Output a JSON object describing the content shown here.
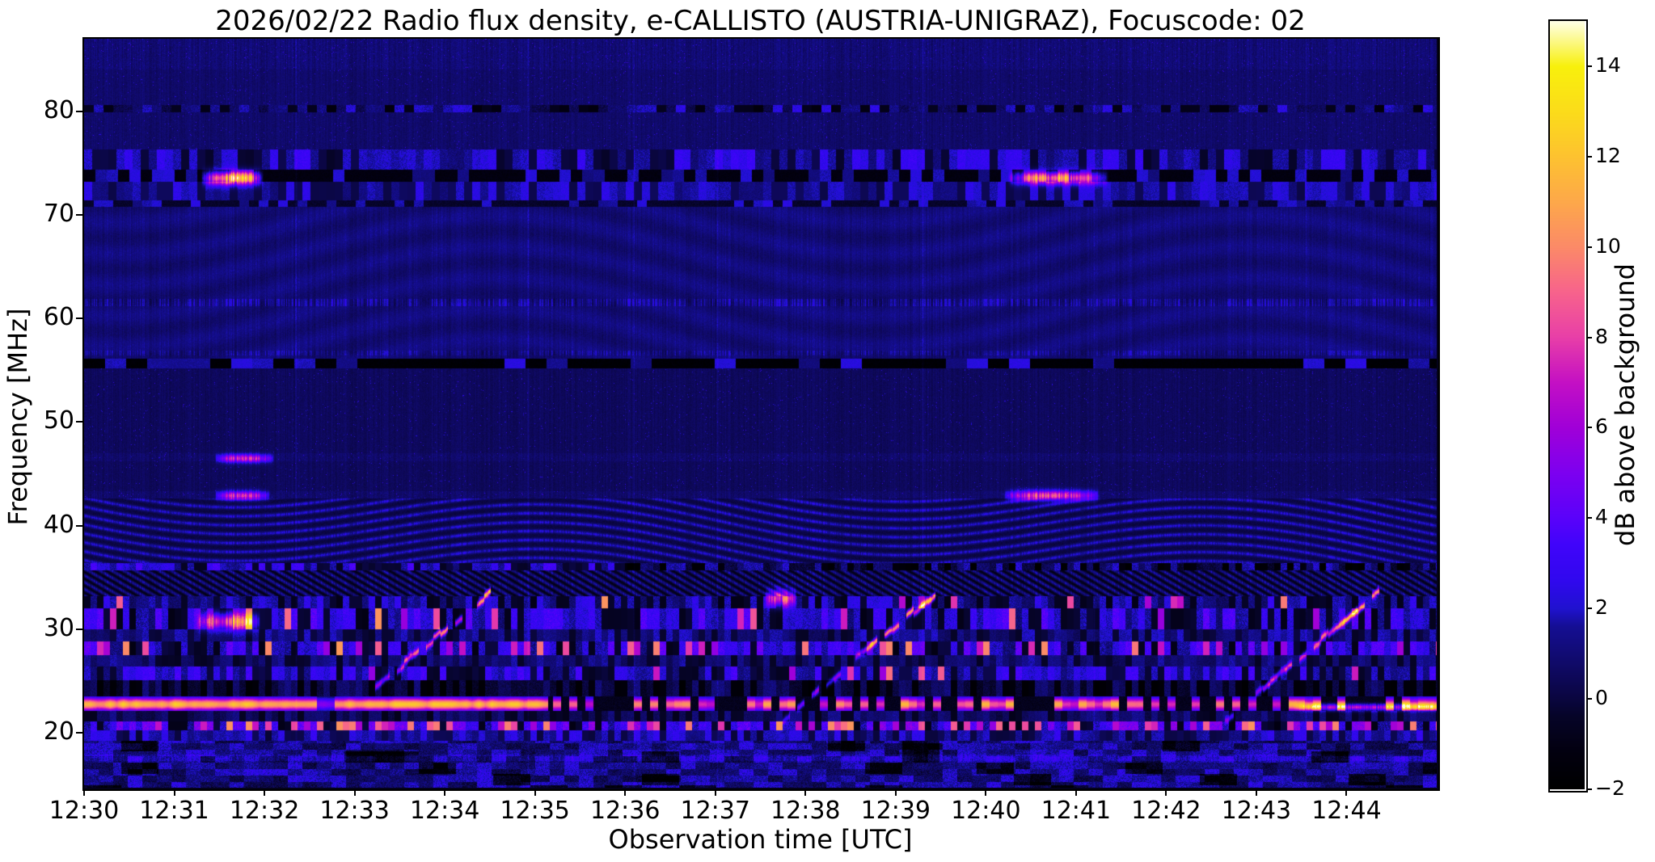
{
  "chart_data": {
    "type": "heatmap",
    "title": "2026/02/22  Radio flux density, e-CALLISTO (AUSTRIA-UNIGRAZ), Focuscode: 02",
    "xlabel": "Observation time [UTC]",
    "ylabel": "Frequency [MHz]",
    "x_start": "12:30",
    "x_end": "12:45",
    "duration_minutes": 15,
    "x_tick_labels": [
      "12:30",
      "12:31",
      "12:32",
      "12:33",
      "12:34",
      "12:35",
      "12:36",
      "12:37",
      "12:38",
      "12:39",
      "12:40",
      "12:41",
      "12:42",
      "12:43",
      "12:44"
    ],
    "y_tick_values": [
      80,
      70,
      60,
      50,
      40,
      30,
      20
    ],
    "freq_range_mhz": [
      14.7,
      87.0
    ],
    "grid": false,
    "colorbar": {
      "label": "dB above background",
      "tick_values": [
        -2,
        0,
        2,
        4,
        6,
        8,
        10,
        12,
        14
      ],
      "tick_labels": [
        "−2",
        "0",
        "2",
        "4",
        "6",
        "8",
        "10",
        "12",
        "14"
      ],
      "range": [
        -2,
        15
      ],
      "colormap": "gnuplot2-like",
      "colormap_stops": [
        [
          -2.0,
          "#000000"
        ],
        [
          -1.2,
          "#02000f"
        ],
        [
          -0.4,
          "#060428"
        ],
        [
          0.0,
          "#0a0640"
        ],
        [
          0.8,
          "#100a6a"
        ],
        [
          1.6,
          "#150e94"
        ],
        [
          2.0,
          "#2012d0"
        ],
        [
          2.6,
          "#3008ee"
        ],
        [
          3.4,
          "#4004fa"
        ],
        [
          4.0,
          "#5a02fa"
        ],
        [
          5.0,
          "#7d00f0"
        ],
        [
          6.0,
          "#a000d8"
        ],
        [
          7.0,
          "#c410c4"
        ],
        [
          8.0,
          "#e83fa8"
        ],
        [
          9.0,
          "#f7638c"
        ],
        [
          10.0,
          "#fb8a68"
        ],
        [
          11.0,
          "#fda84a"
        ],
        [
          12.0,
          "#fdc230"
        ],
        [
          13.0,
          "#fbdc1a"
        ],
        [
          14.0,
          "#f8f00c"
        ],
        [
          15.0,
          "#ffffe6"
        ]
      ]
    },
    "background_bands": [
      {
        "f": [
          84.0,
          87.0
        ],
        "level": 1.0,
        "var": 0.7,
        "kind": "speckle"
      },
      {
        "f": [
          80.6,
          84.0
        ],
        "level": 0.8,
        "var": 0.5,
        "kind": "speckle"
      },
      {
        "f": [
          79.9,
          80.6
        ],
        "level": 0.7,
        "var": 1.6,
        "kind": "dash",
        "dashlen": 12
      },
      {
        "f": [
          76.3,
          79.9
        ],
        "level": 0.8,
        "var": 0.5,
        "kind": "speckle"
      },
      {
        "f": [
          74.4,
          76.3
        ],
        "level": 1.5,
        "var": 1.5,
        "kind": "dash",
        "dashlen": 10
      },
      {
        "f": [
          73.2,
          74.4
        ],
        "level": -1.2,
        "var": 1.2,
        "kind": "dash-dark",
        "dashlen": 14
      },
      {
        "f": [
          71.4,
          73.2
        ],
        "level": 1.4,
        "var": 1.0,
        "kind": "dash",
        "dashlen": 10
      },
      {
        "f": [
          70.8,
          71.4
        ],
        "level": -0.4,
        "var": 0.8,
        "kind": "dash-dark",
        "dashlen": 12
      },
      {
        "f": [
          56.1,
          70.8
        ],
        "level": 1.05,
        "var": 0.5,
        "kind": "faintwave"
      },
      {
        "f": [
          55.2,
          56.1
        ],
        "level": -1.7,
        "var": 0.6,
        "kind": "dash-dark",
        "dashlen": 26
      },
      {
        "f": [
          47.0,
          55.2
        ],
        "level": 0.55,
        "var": 0.45,
        "kind": "speckle"
      },
      {
        "f": [
          46.2,
          47.0
        ],
        "level": 0.8,
        "var": 0.6,
        "kind": "speckle"
      },
      {
        "f": [
          43.3,
          46.2
        ],
        "level": 0.55,
        "var": 0.45,
        "kind": "speckle"
      },
      {
        "f": [
          42.6,
          43.3
        ],
        "level": 0.8,
        "var": 0.6,
        "kind": "speckle"
      },
      {
        "f": [
          36.4,
          42.6
        ],
        "level": 0.2,
        "var": 0.5,
        "kind": "waves"
      },
      {
        "f": [
          35.7,
          36.4
        ],
        "level": 1.6,
        "var": 1.8,
        "kind": "dash",
        "fade_after_min": 6.0
      },
      {
        "f": [
          33.2,
          35.7
        ],
        "level": -0.6,
        "var": 0.7,
        "kind": "hatch"
      },
      {
        "f": [
          32.0,
          33.2
        ],
        "level": 1.1,
        "var": 1.6,
        "kind": "dash",
        "hot": 0.05
      },
      {
        "f": [
          30.0,
          32.0
        ],
        "level": 1.7,
        "var": 2.1,
        "kind": "dash",
        "hot": 0.1
      },
      {
        "f": [
          28.8,
          30.0
        ],
        "level": 0.9,
        "var": 1.1,
        "kind": "dash"
      },
      {
        "f": [
          27.5,
          28.8
        ],
        "level": 1.9,
        "var": 2.3,
        "kind": "dash",
        "hot": 0.13
      },
      {
        "f": [
          26.4,
          27.5
        ],
        "level": 0.7,
        "var": 1.0,
        "kind": "dash"
      },
      {
        "f": [
          25.1,
          26.4
        ],
        "level": 1.6,
        "var": 1.7,
        "kind": "dash",
        "hot": 0.05
      },
      {
        "f": [
          23.5,
          25.1
        ],
        "level": -0.2,
        "var": 1.3,
        "kind": "dash"
      },
      {
        "f": [
          22.1,
          23.5
        ],
        "kind": "special-yellow",
        "center": 22.75,
        "sigma": 0.45,
        "peak": 12.5,
        "solid_until_min": 5.15,
        "gap_min": [
          2.58,
          2.78
        ]
      },
      {
        "f": [
          21.1,
          22.1
        ],
        "level": 0.4,
        "var": 1.0,
        "kind": "dash"
      },
      {
        "f": [
          20.2,
          21.1
        ],
        "level": 2.4,
        "var": 2.8,
        "kind": "dash",
        "hot": 0.32
      },
      {
        "f": [
          19.2,
          20.2
        ],
        "level": 1.5,
        "var": 1.3,
        "kind": "dash"
      },
      {
        "f": [
          14.7,
          19.2
        ],
        "level": 1.2,
        "var": 1.5,
        "kind": "blotch"
      }
    ],
    "bursts": [
      {
        "t": [
          3.15,
          4.5
        ],
        "f": [
          23.8,
          33.6
        ],
        "amp": 11,
        "desc": "drifting radio burst ~12:33-12:34"
      },
      {
        "t": [
          7.75,
          9.45
        ],
        "f": [
          21.3,
          33.6
        ],
        "amp": 11,
        "desc": "drifting radio burst ~12:38-12:39"
      },
      {
        "t": [
          12.65,
          14.35
        ],
        "f": [
          21.3,
          33.6
        ],
        "amp": 11,
        "desc": "drifting radio burst ~12:43-12:44"
      }
    ],
    "point_features": [
      {
        "t": [
          1.3,
          1.98
        ],
        "f": 73.6,
        "fw": 0.45,
        "amp": 11.5,
        "desc": "bright blob 73.6 MHz ~12:31.5"
      },
      {
        "t": [
          10.25,
          11.35
        ],
        "f": 73.6,
        "fw": 0.42,
        "amp": 9.5,
        "desc": "bright blob 73.6 MHz ~12:40.8"
      },
      {
        "t": [
          1.45,
          2.1
        ],
        "f": 46.5,
        "fw": 0.28,
        "amp": 6.5,
        "desc": "narrow line 46.5 MHz"
      },
      {
        "t": [
          1.45,
          2.05
        ],
        "f": 42.9,
        "fw": 0.3,
        "amp": 6.5,
        "desc": "narrow line 42.9 MHz"
      },
      {
        "t": [
          10.2,
          11.25
        ],
        "f": 42.9,
        "fw": 0.34,
        "amp": 7.5,
        "desc": "narrow line 42.9 MHz ~12:40.7"
      },
      {
        "t": [
          7.55,
          7.9
        ],
        "f": 33.0,
        "fw": 0.55,
        "amp": 7.0,
        "desc": "magenta blob 33 MHz ~12:37.7"
      },
      {
        "t": [
          1.25,
          1.95
        ],
        "f": 30.8,
        "fw": 0.55,
        "amp": 8.0,
        "desc": "pink patch 30.8 MHz ~12:31.5"
      },
      {
        "t": [
          13.4,
          15.0
        ],
        "f": 22.5,
        "fw": 0.22,
        "amp": 6.5,
        "taper": "left",
        "desc": "thin line 22.5 MHz after 12:43.4"
      }
    ],
    "vertical_streaks_min": [
      2.35,
      4.92,
      6.1,
      7.02,
      9.3,
      11.2,
      13.55
    ]
  }
}
